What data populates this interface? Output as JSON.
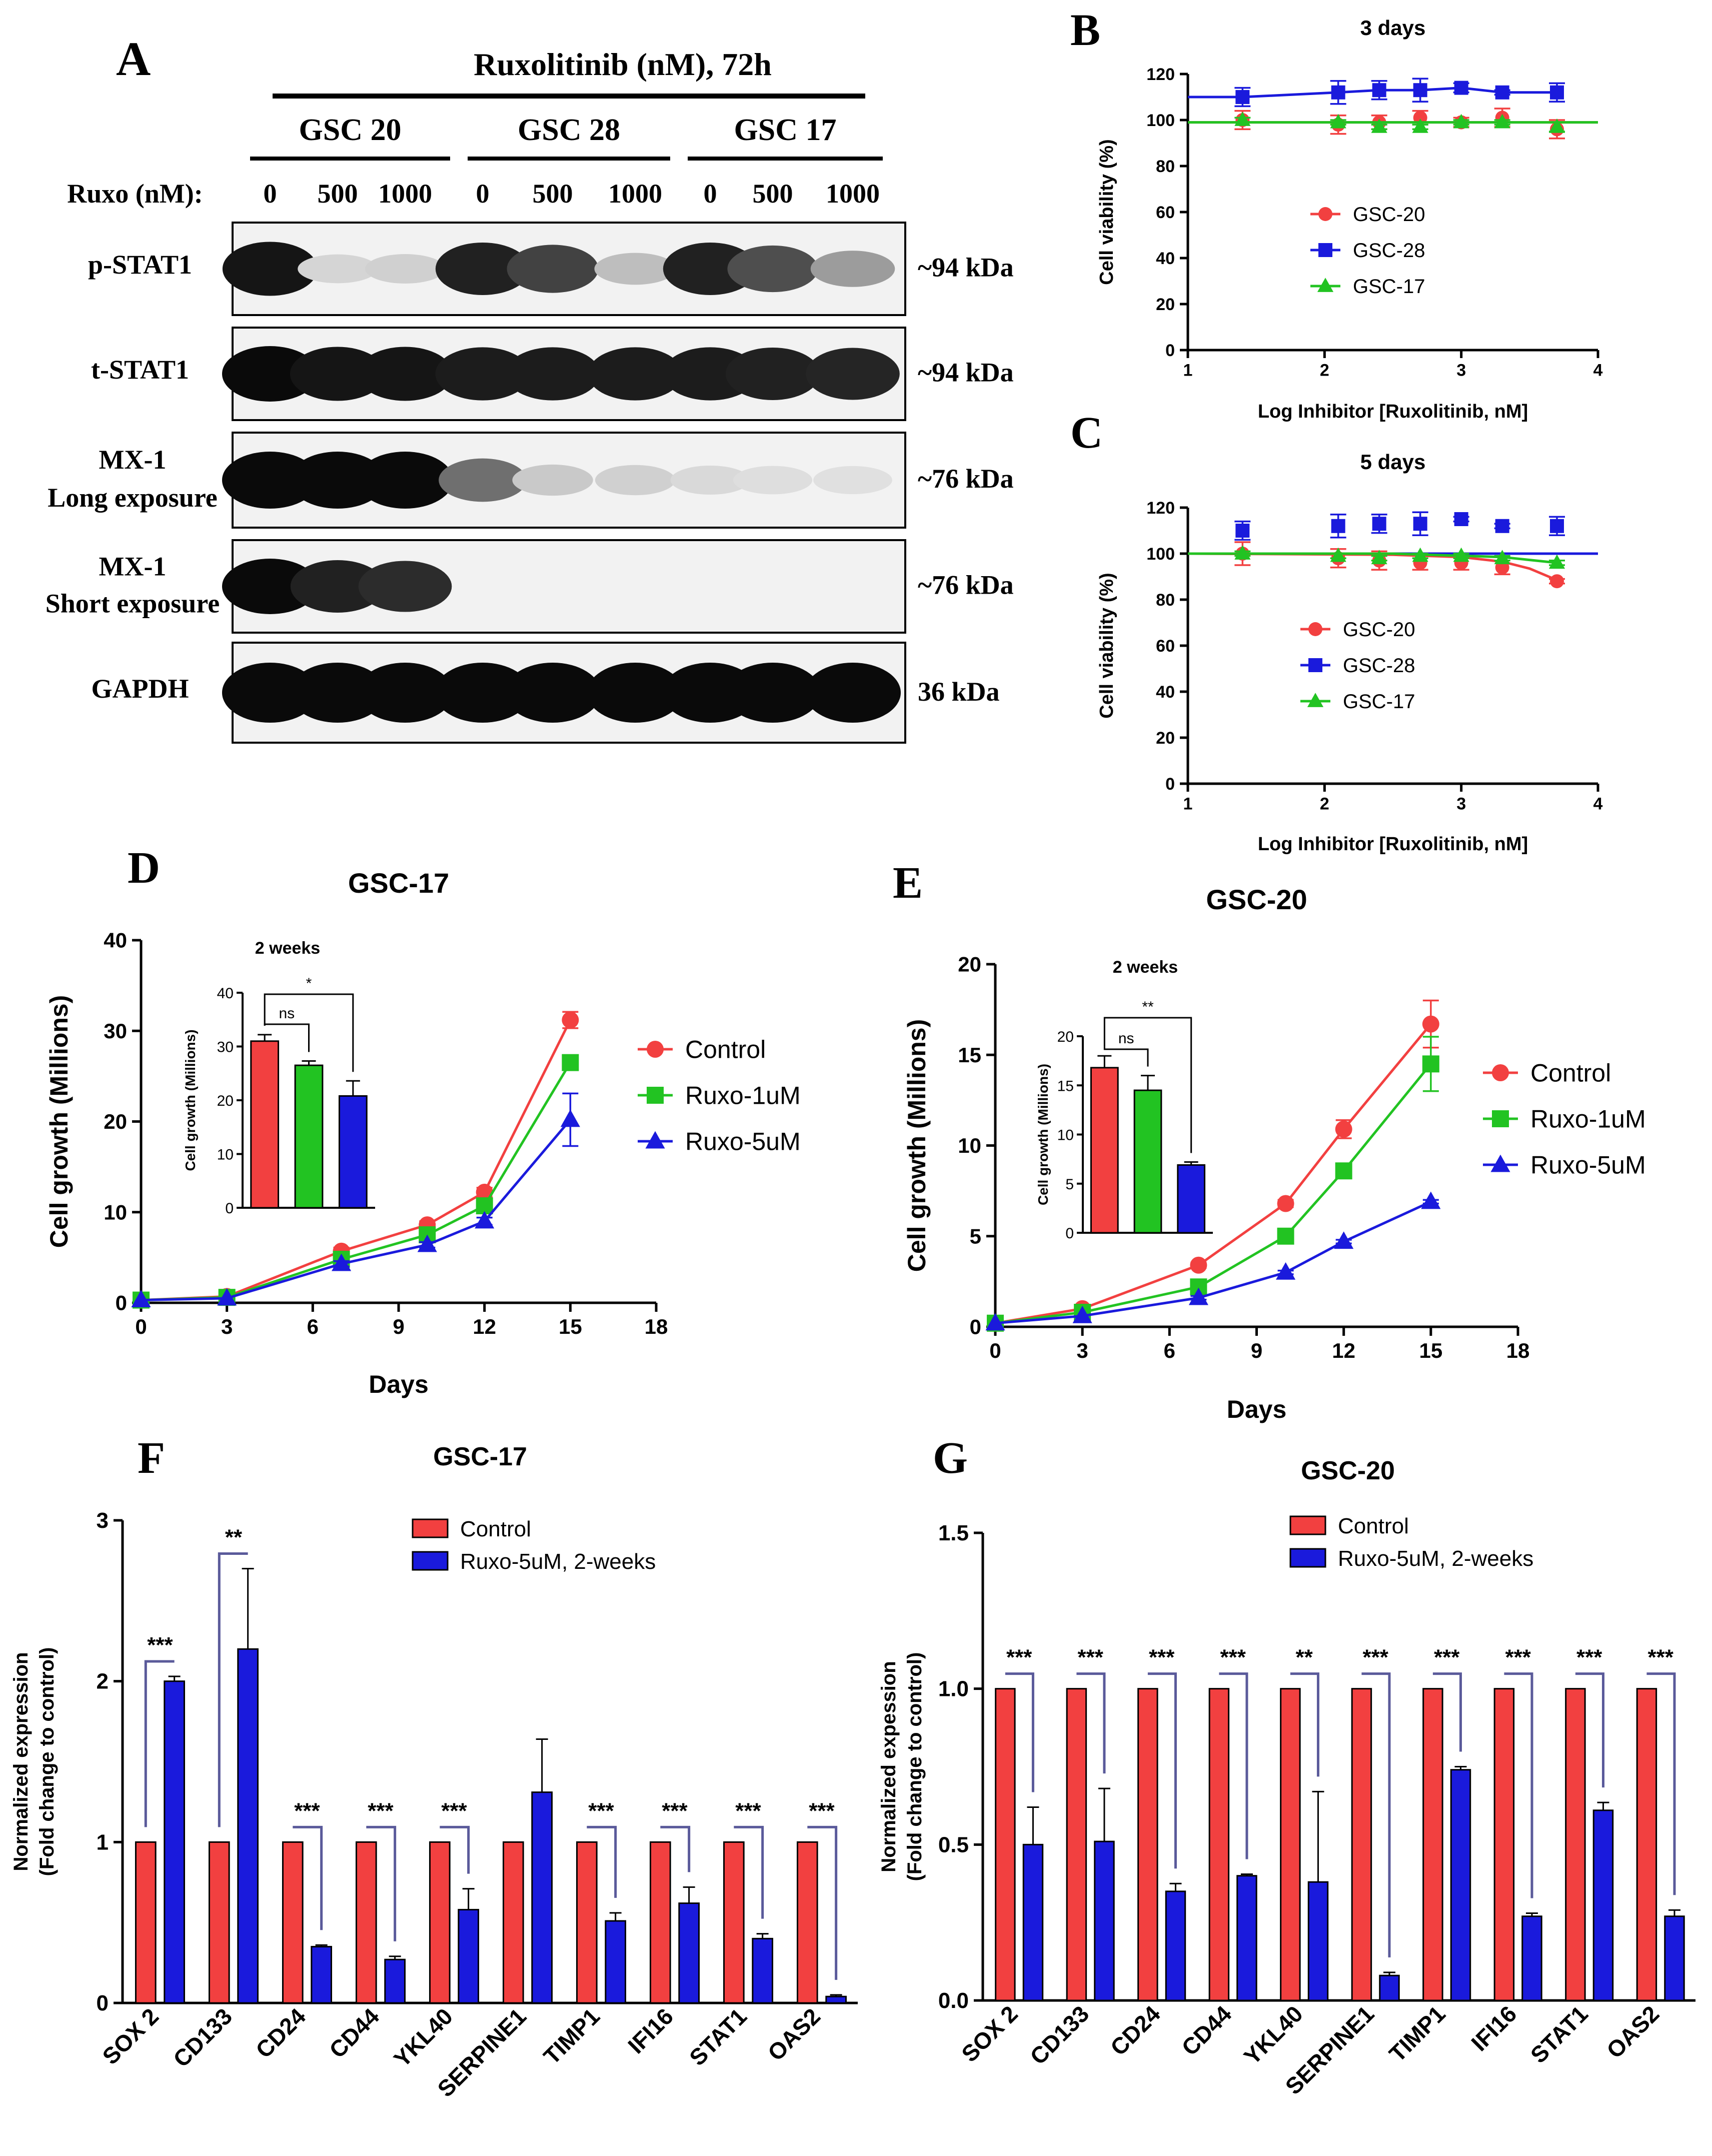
{
  "colors": {
    "red": "#f24040",
    "blue": "#1a1adc",
    "green": "#22c322",
    "black": "#000000"
  },
  "panel_letters": {
    "A": "A",
    "B": "B",
    "C": "C",
    "D": "D",
    "E": "E",
    "F": "F",
    "G": "G"
  },
  "western_blot": {
    "title": "Ruxolitinib (nM), 72h",
    "groups": [
      "GSC 20",
      "GSC 28",
      "GSC 17"
    ],
    "dose_label": "Ruxo (nM):",
    "doses": [
      "0",
      "500",
      "1000",
      "0",
      "500",
      "1000",
      "0",
      "500",
      "1000"
    ],
    "rows": [
      {
        "label": "p-STAT1",
        "label2": "",
        "size": "~94 kDa",
        "intensity": [
          0.95,
          0.1,
          0.12,
          0.9,
          0.75,
          0.2,
          0.9,
          0.7,
          0.35
        ]
      },
      {
        "label": "t-STAT1",
        "label2": "",
        "size": "~94 kDa",
        "intensity": [
          1,
          0.95,
          0.95,
          0.92,
          0.92,
          0.92,
          0.92,
          0.9,
          0.88
        ]
      },
      {
        "label": "MX-1",
        "label2": "Long exposure",
        "size": "~76 kDa",
        "intensity": [
          1,
          1,
          1,
          0.55,
          0.15,
          0.12,
          0.08,
          0.06,
          0.05
        ]
      },
      {
        "label": "MX-1",
        "label2": "Short exposure",
        "size": "~76 kDa",
        "intensity": [
          1,
          0.9,
          0.85,
          0,
          0,
          0,
          0,
          0,
          0
        ]
      },
      {
        "label": "GAPDH",
        "label2": "",
        "size": "36 kDa",
        "intensity": [
          1,
          1,
          1,
          1,
          1,
          1,
          1,
          1,
          1
        ]
      }
    ]
  },
  "chart_data": [
    {
      "id": "B",
      "type": "line",
      "title": "3 days",
      "xlabel": "Log Inhibitor [Ruxolitinib, nM]",
      "ylabel": "Cell viability (%)",
      "xlim": [
        1,
        4
      ],
      "ylim": [
        0,
        120
      ],
      "xticks": [
        "1",
        "2",
        "3",
        "4"
      ],
      "yticks": [
        "0",
        "20",
        "40",
        "60",
        "80",
        "100",
        "120"
      ],
      "legend": "center",
      "series": [
        {
          "name": "GSC-20",
          "color": "red",
          "marker": "circle",
          "x": [
            1.4,
            2.1,
            2.4,
            2.7,
            3.0,
            3.3,
            3.7
          ],
          "y": [
            100,
            98,
            99,
            101,
            99,
            101,
            96
          ],
          "err": [
            4,
            4,
            3,
            3,
            2,
            4,
            4
          ],
          "fit_x": [
            1.0,
            4.0
          ],
          "fit_y": [
            99,
            99
          ]
        },
        {
          "name": "GSC-28",
          "color": "blue",
          "marker": "square",
          "x": [
            1.4,
            2.1,
            2.4,
            2.7,
            3.0,
            3.3,
            3.7
          ],
          "y": [
            110,
            112,
            113,
            113,
            114,
            112,
            112
          ],
          "err": [
            4,
            5,
            4,
            5,
            2,
            1,
            4
          ],
          "fit_x": [
            1.0,
            1.4,
            2.1,
            2.4,
            2.7,
            3.0,
            3.3,
            3.7
          ],
          "fit_y": [
            110,
            110,
            112,
            113,
            113,
            114,
            112,
            112
          ]
        },
        {
          "name": "GSC-17",
          "color": "green",
          "marker": "triangle",
          "x": [
            1.4,
            2.1,
            2.4,
            2.7,
            3.0,
            3.3,
            3.7
          ],
          "y": [
            100,
            99,
            97,
            97,
            99,
            99,
            97
          ],
          "err": [
            1,
            1,
            1,
            1,
            1,
            1,
            2
          ],
          "fit_x": [
            1.0,
            4.0
          ],
          "fit_y": [
            99,
            99
          ]
        }
      ]
    },
    {
      "id": "C",
      "type": "line",
      "title": "5 days",
      "xlabel": "Log Inhibitor [Ruxolitinib, nM]",
      "ylabel": "Cell viability (%)",
      "xlim": [
        1,
        4
      ],
      "ylim": [
        0,
        120
      ],
      "xticks": [
        "1",
        "2",
        "3",
        "4"
      ],
      "yticks": [
        "0",
        "20",
        "40",
        "60",
        "80",
        "100",
        "120"
      ],
      "legend": "center",
      "series": [
        {
          "name": "GSC-20",
          "color": "red",
          "marker": "circle",
          "x": [
            1.4,
            2.1,
            2.4,
            2.7,
            3.0,
            3.3,
            3.7
          ],
          "y": [
            100,
            98,
            97,
            96,
            96,
            94,
            88
          ],
          "err": [
            5,
            4,
            4,
            3,
            3,
            3,
            1
          ],
          "fit_x": [
            1.0,
            2.5,
            3.0,
            3.3,
            3.5,
            3.7
          ],
          "fit_y": [
            100,
            99.5,
            98.5,
            96.5,
            93.5,
            88.5
          ]
        },
        {
          "name": "GSC-28",
          "color": "blue",
          "marker": "square",
          "x": [
            1.4,
            2.1,
            2.4,
            2.7,
            3.0,
            3.3,
            3.7
          ],
          "y": [
            110,
            112,
            113,
            113,
            115,
            112,
            112
          ],
          "err": [
            4,
            5,
            4,
            5,
            1,
            1,
            4
          ],
          "fit_x": [
            1.0,
            4.0
          ],
          "fit_y": [
            100,
            100
          ]
        },
        {
          "name": "GSC-17",
          "color": "green",
          "marker": "triangle",
          "x": [
            1.4,
            2.1,
            2.4,
            2.7,
            3.0,
            3.3,
            3.7
          ],
          "y": [
            100,
            99,
            98,
            99,
            99,
            98,
            96
          ],
          "err": [
            1,
            1,
            1,
            1,
            1,
            1,
            1
          ],
          "fit_x": [
            1.0,
            2.5,
            3.3,
            3.7
          ],
          "fit_y": [
            100,
            100,
            98.5,
            96
          ]
        }
      ]
    },
    {
      "id": "D",
      "type": "line",
      "title": "GSC-17",
      "xlabel": "Days",
      "ylabel": "Cell growth (Millions)",
      "xlim": [
        0,
        18
      ],
      "ylim": [
        0,
        40
      ],
      "xticks": [
        "0",
        "3",
        "6",
        "9",
        "12",
        "15",
        "18"
      ],
      "yticks": [
        "0",
        "10",
        "20",
        "30",
        "40"
      ],
      "legend": "right",
      "series": [
        {
          "name": "Control",
          "color": "red",
          "marker": "circle",
          "x": [
            0,
            3,
            7,
            10,
            12,
            15
          ],
          "y": [
            0.3,
            0.7,
            5.7,
            8.6,
            12.2,
            31.2
          ],
          "err": [
            0,
            0,
            0.4,
            0.4,
            0.5,
            0.9
          ]
        },
        {
          "name": "Ruxo-1uM",
          "color": "green",
          "marker": "square",
          "x": [
            0,
            3,
            7,
            10,
            12,
            15
          ],
          "y": [
            0.3,
            0.6,
            4.8,
            7.5,
            10.7,
            26.5
          ],
          "err": [
            0,
            0,
            0.4,
            0.4,
            0.5,
            0.7
          ]
        },
        {
          "name": "Ruxo-5uM",
          "color": "blue",
          "marker": "triangle",
          "x": [
            0,
            3,
            7,
            10,
            12,
            15
          ],
          "y": [
            0.3,
            0.5,
            4.3,
            6.4,
            9.0,
            20.2
          ],
          "err": [
            0,
            0,
            0.3,
            0.3,
            0.4,
            2.9
          ]
        }
      ],
      "inset": {
        "title": "2 weeks",
        "ylabel": "Cell growth (Millions)",
        "ylim": [
          0,
          40
        ],
        "yticks": [
          "0",
          "10",
          "20",
          "30",
          "40"
        ],
        "categories": [
          "Control",
          "Ruxo-1uM",
          "Ruxo-5uM"
        ],
        "values": [
          31,
          26.5,
          20.8
        ],
        "err": [
          1.2,
          0.8,
          2.8
        ],
        "colors": [
          "red",
          "green",
          "blue"
        ],
        "sig": [
          {
            "from": 0,
            "to": 1,
            "label": "ns"
          },
          {
            "from": 0,
            "to": 2,
            "label": "*"
          }
        ]
      }
    },
    {
      "id": "E",
      "type": "line",
      "title": "GSC-20",
      "xlabel": "Days",
      "ylabel": "Cell growth (Millions)",
      "xlim": [
        0,
        18
      ],
      "ylim": [
        0,
        20
      ],
      "xticks": [
        "0",
        "3",
        "6",
        "9",
        "12",
        "15",
        "18"
      ],
      "yticks": [
        "0",
        "5",
        "10",
        "15",
        "20"
      ],
      "legend": "right",
      "series": [
        {
          "name": "Control",
          "color": "red",
          "marker": "circle",
          "x": [
            0,
            3,
            7,
            10,
            12,
            15
          ],
          "y": [
            0.2,
            1.0,
            3.4,
            6.8,
            10.9,
            16.7
          ],
          "err": [
            0,
            0,
            0.15,
            0.2,
            0.5,
            1.3
          ]
        },
        {
          "name": "Ruxo-1uM",
          "color": "green",
          "marker": "square",
          "x": [
            0,
            3,
            7,
            10,
            12,
            15
          ],
          "y": [
            0.2,
            0.8,
            2.2,
            5.0,
            8.6,
            14.5
          ],
          "err": [
            0,
            0,
            0.15,
            0.2,
            0.3,
            1.5
          ]
        },
        {
          "name": "Ruxo-5uM",
          "color": "blue",
          "marker": "triangle",
          "x": [
            0,
            3,
            7,
            10,
            12,
            15
          ],
          "y": [
            0.2,
            0.6,
            1.6,
            3.0,
            4.7,
            6.9
          ],
          "err": [
            0,
            0,
            0.1,
            0.1,
            0.1,
            0.1
          ]
        }
      ],
      "inset": {
        "title": "2 weeks",
        "ylabel": "Cell growth (Millions)",
        "ylim": [
          0,
          20
        ],
        "yticks": [
          "0",
          "5",
          "10",
          "15",
          "20"
        ],
        "categories": [
          "Control",
          "Ruxo-1uM",
          "Ruxo-5uM"
        ],
        "values": [
          16.8,
          14.5,
          6.9
        ],
        "err": [
          1.2,
          1.5,
          0.3
        ],
        "colors": [
          "red",
          "green",
          "blue"
        ],
        "sig": [
          {
            "from": 0,
            "to": 1,
            "label": "ns"
          },
          {
            "from": 0,
            "to": 2,
            "label": "**"
          }
        ]
      }
    },
    {
      "id": "F",
      "type": "bar",
      "title": "GSC-17",
      "xlabel": "",
      "ylabel": [
        "Normalized expression",
        "(Fold change to control)"
      ],
      "ylim": [
        0,
        3
      ],
      "yticks": [
        "0",
        "1",
        "2",
        "3"
      ],
      "categories": [
        "SOX 2",
        "CD133",
        "CD24",
        "CD44",
        "YKL40",
        "SERPINE1",
        "TIMP1",
        "IFI16",
        "STAT1",
        "OAS2"
      ],
      "series": [
        {
          "name": "Control",
          "color": "red",
          "values": [
            1,
            1,
            1,
            1,
            1,
            1,
            1,
            1,
            1,
            1
          ],
          "err": [
            0,
            0,
            0,
            0,
            0,
            0,
            0,
            0,
            0,
            0
          ]
        },
        {
          "name": "Ruxo-5uM, 2-weeks",
          "color": "blue",
          "values": [
            2.0,
            2.2,
            0.35,
            0.27,
            0.58,
            1.31,
            0.51,
            0.62,
            0.4,
            0.04
          ],
          "err": [
            0.03,
            0.5,
            0.01,
            0.02,
            0.13,
            0.33,
            0.05,
            0.1,
            0.03,
            0.01
          ]
        }
      ],
      "significance": [
        "***",
        "**",
        "***",
        "***",
        "***",
        "",
        "***",
        "***",
        "***",
        "***"
      ]
    },
    {
      "id": "G",
      "type": "bar",
      "title": "GSC-20",
      "xlabel": "",
      "ylabel": [
        "Normalized expession",
        "(Fold change to control)"
      ],
      "ylim": [
        0,
        1.5
      ],
      "yticks": [
        "0.0",
        "0.5",
        "1.0",
        "1.5"
      ],
      "categories": [
        "SOX 2",
        "CD133",
        "CD24",
        "CD44",
        "YKL40",
        "SERPINE1",
        "TIMP1",
        "IFI16",
        "STAT1",
        "OAS2"
      ],
      "series": [
        {
          "name": "Control",
          "color": "red",
          "values": [
            1,
            1,
            1,
            1,
            1,
            1,
            1,
            1,
            1,
            1
          ],
          "err": [
            0,
            0,
            0,
            0,
            0,
            0,
            0,
            0,
            0,
            0
          ]
        },
        {
          "name": "Ruxo-5uM, 2-weeks",
          "color": "blue",
          "values": [
            0.5,
            0.51,
            0.35,
            0.4,
            0.38,
            0.08,
            0.74,
            0.27,
            0.61,
            0.27
          ],
          "err": [
            0.12,
            0.17,
            0.025,
            0.005,
            0.29,
            0.01,
            0.01,
            0.01,
            0.025,
            0.02
          ]
        }
      ],
      "significance": [
        "***",
        "***",
        "***",
        "***",
        "**",
        "***",
        "***",
        "***",
        "***",
        "***"
      ]
    }
  ]
}
